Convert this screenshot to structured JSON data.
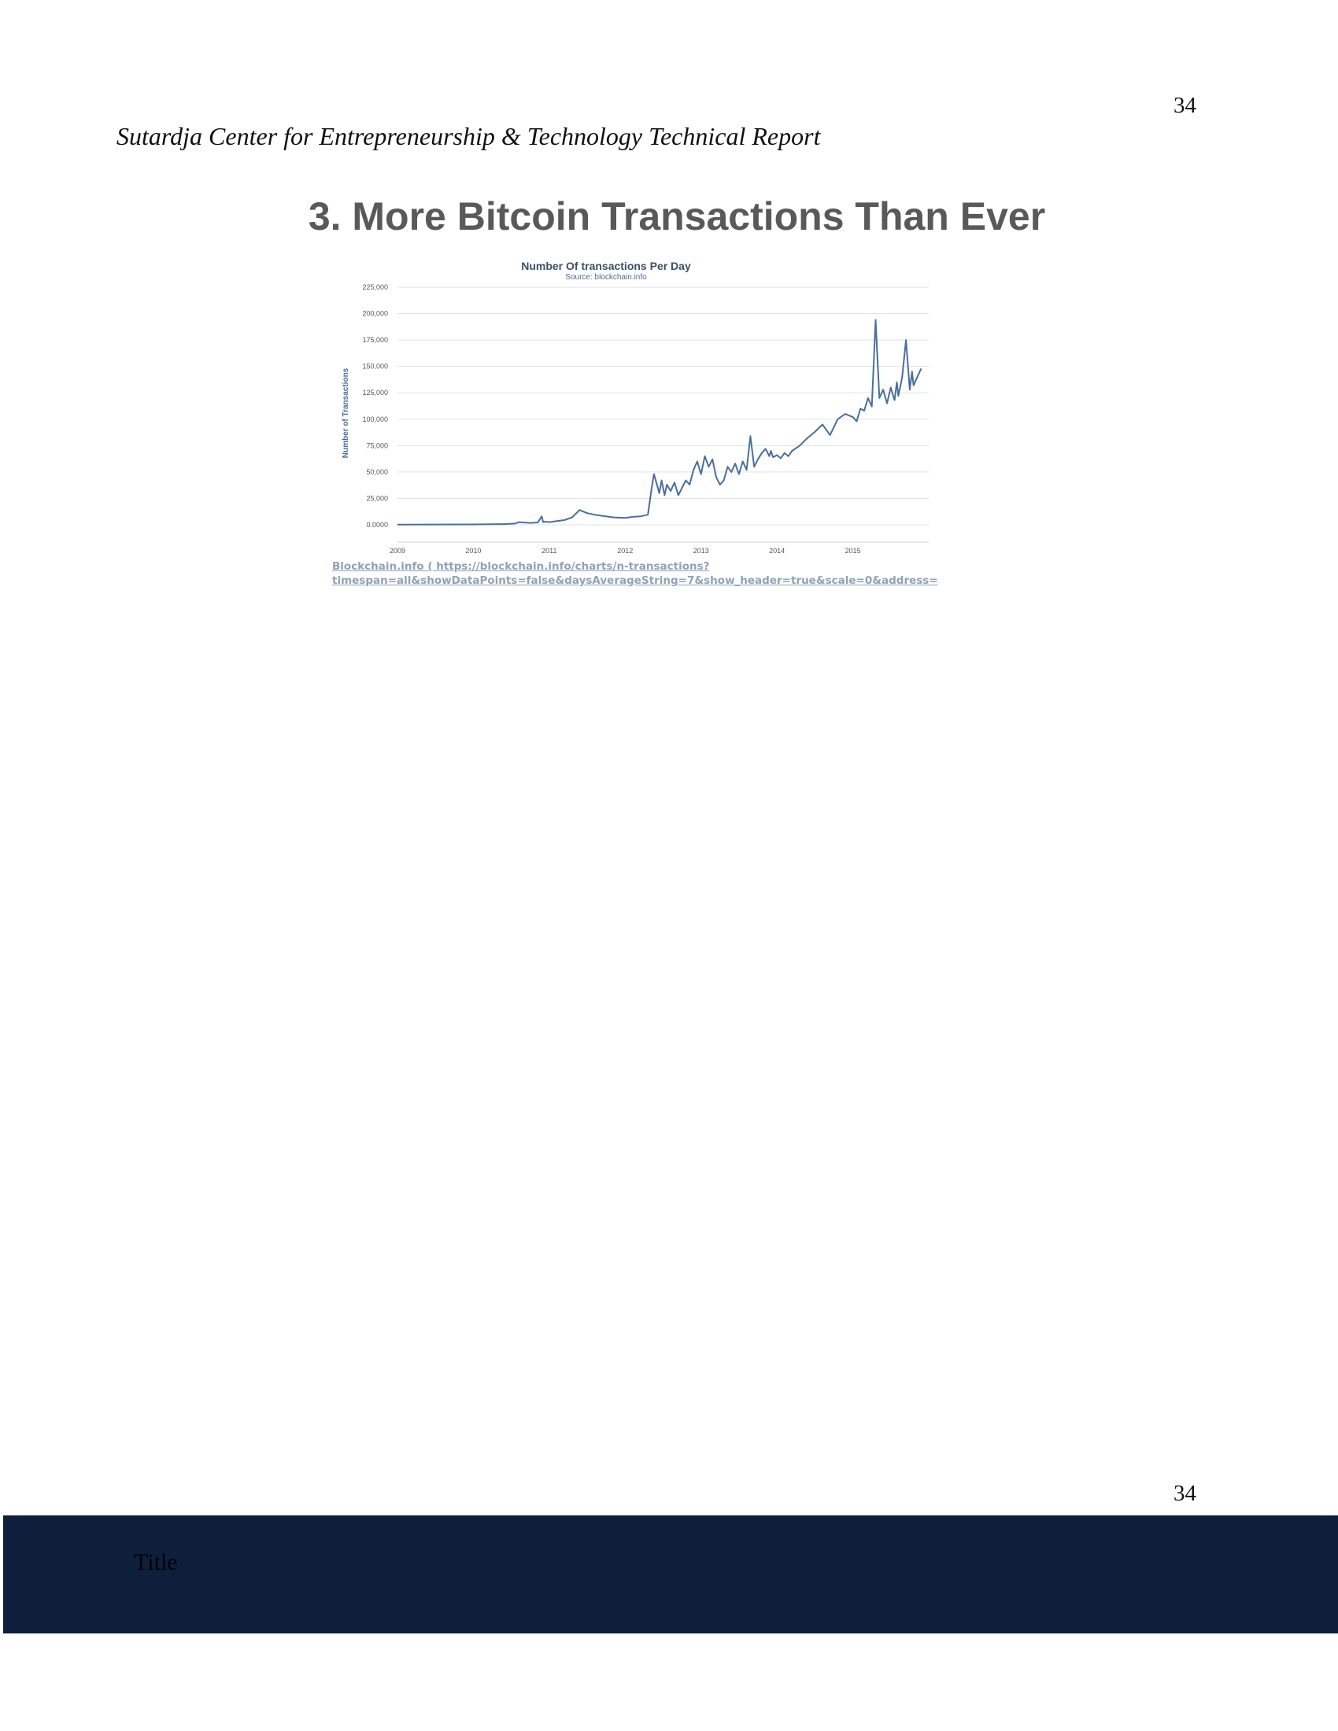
{
  "page": {
    "page_number_top": "34",
    "page_number_bottom": "34",
    "running_header": "Sutardja Center for Entrepreneurship & Technology Technical Report",
    "slide_title": "3. More Bitcoin Transactions Than Ever",
    "source_line_1": "Blockchain.info ( https://blockchain.info/charts/n-transactions?",
    "source_line_2": "timespan=all&showDataPoints=false&daysAverageString=7&show_header=true&scale=0&address=",
    "footer_title": "Title"
  },
  "chart_data": {
    "type": "line",
    "title": "Number Of transactions Per Day",
    "subtitle": "Source: blockchain.info",
    "xlabel": "",
    "ylabel": "Number of Transactions",
    "xlim": [
      2009.0,
      2016.0
    ],
    "ylim": [
      0,
      225000
    ],
    "y_ticks": [
      0,
      25000,
      50000,
      75000,
      100000,
      125000,
      150000,
      175000,
      200000,
      225000
    ],
    "y_tick_labels": [
      "0.0000",
      "25,000",
      "50,000",
      "75,000",
      "100,000",
      "125,000",
      "150,000",
      "175,000",
      "200,000",
      "225,000"
    ],
    "x_ticks": [
      2009,
      2010,
      2011,
      2012,
      2013,
      2014,
      2015
    ],
    "x_tick_labels": [
      "2009",
      "2010",
      "2011",
      "2012",
      "2013",
      "2014",
      "2015"
    ],
    "grid": "horizontal",
    "line_color": "#4a6f9a",
    "series": [
      {
        "x": [
          2009.0,
          2009.5,
          2010.0,
          2010.4,
          2010.55,
          2010.6,
          2010.75,
          2010.85,
          2010.9,
          2010.92,
          2010.95,
          2011.0,
          2011.1,
          2011.2,
          2011.3,
          2011.4,
          2011.45,
          2011.5,
          2011.6,
          2011.7,
          2011.85,
          2012.0,
          2012.1,
          2012.2,
          2012.3,
          2012.35,
          2012.38,
          2012.45,
          2012.48,
          2012.52,
          2012.55,
          2012.6,
          2012.65,
          2012.7,
          2012.75,
          2012.8,
          2012.85,
          2012.9,
          2012.95,
          2013.0,
          2013.05,
          2013.1,
          2013.15,
          2013.2,
          2013.25,
          2013.3,
          2013.35,
          2013.4,
          2013.45,
          2013.5,
          2013.55,
          2013.6,
          2013.65,
          2013.7,
          2013.75,
          2013.8,
          2013.85,
          2013.9,
          2013.92,
          2013.95,
          2014.0,
          2014.05,
          2014.1,
          2014.15,
          2014.2,
          2014.3,
          2014.4,
          2014.5,
          2014.6,
          2014.7,
          2014.8,
          2014.9,
          2015.0,
          2015.05,
          2015.1,
          2015.15,
          2015.2,
          2015.25,
          2015.3,
          2015.35,
          2015.4,
          2015.45,
          2015.5,
          2015.52,
          2015.55,
          2015.58,
          2015.6,
          2015.65,
          2015.7,
          2015.75,
          2015.78,
          2015.8,
          2015.85,
          2015.9
        ],
        "y": [
          200,
          300,
          400,
          700,
          1200,
          2500,
          1800,
          2200,
          8000,
          2500,
          3000,
          2500,
          3500,
          4500,
          7000,
          14000,
          12500,
          11000,
          9500,
          8500,
          7000,
          6500,
          7500,
          8000,
          9500,
          35000,
          48000,
          30000,
          42000,
          28000,
          38000,
          32000,
          40000,
          28000,
          35000,
          42000,
          38000,
          52000,
          60000,
          48000,
          65000,
          55000,
          62000,
          45000,
          38000,
          42000,
          55000,
          50000,
          58000,
          48000,
          60000,
          52000,
          84000,
          55000,
          62000,
          68000,
          72000,
          65000,
          70000,
          64000,
          66000,
          63000,
          68000,
          65000,
          70000,
          75000,
          82000,
          88000,
          95000,
          85000,
          100000,
          105000,
          102000,
          98000,
          110000,
          108000,
          120000,
          112000,
          194000,
          120000,
          128000,
          115000,
          130000,
          125000,
          118000,
          135000,
          122000,
          140000,
          175000,
          128000,
          145000,
          132000,
          140000,
          148000
        ]
      }
    ]
  }
}
